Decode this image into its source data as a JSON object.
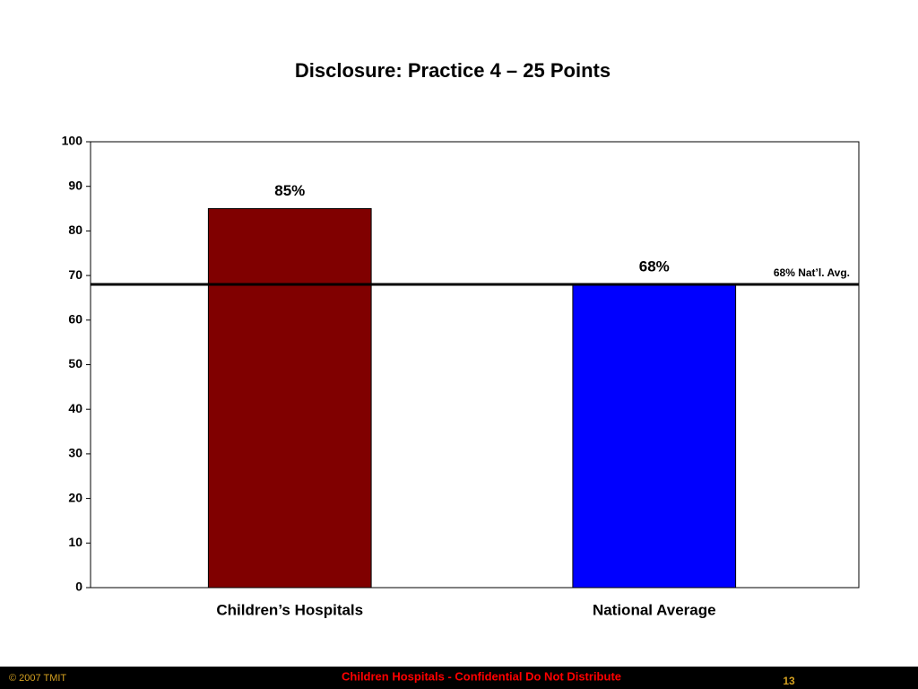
{
  "chart_data": {
    "type": "bar",
    "title": "Disclosure: Practice 4 – 25 Points",
    "categories": [
      "Children’s Hospitals",
      "National Average"
    ],
    "values": [
      85,
      68
    ],
    "value_labels": [
      "85%",
      "68%"
    ],
    "colors": [
      "#800000",
      "#0000ff"
    ],
    "ylim": [
      0,
      100
    ],
    "yticks": [
      0,
      10,
      20,
      30,
      40,
      50,
      60,
      70,
      80,
      90,
      100
    ],
    "reference_line": {
      "value": 68,
      "label": "68% Nat’l. Avg."
    }
  },
  "footer": {
    "left": "© 2007 TMIT",
    "center": "Children Hospitals - Confidential Do Not Distribute",
    "page": "13"
  }
}
